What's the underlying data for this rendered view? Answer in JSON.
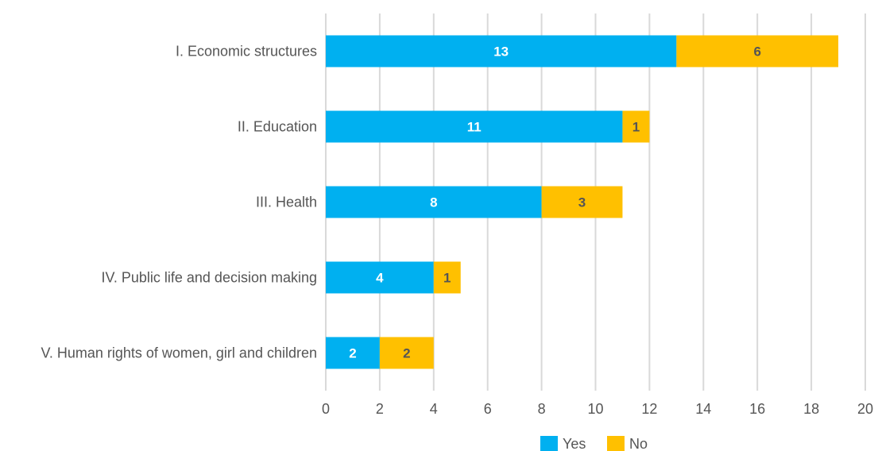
{
  "chart_data": {
    "type": "bar",
    "orientation": "horizontal",
    "stacked": true,
    "title": "",
    "xlabel": "",
    "ylabel": "",
    "categories": [
      "I. Economic structures",
      "II. Education",
      "III. Health",
      "IV. Public life and decision making",
      "V. Human rights of women, girl and children"
    ],
    "series": [
      {
        "name": "Yes",
        "color": "#00B0F0",
        "values": [
          13,
          11,
          8,
          4,
          2
        ]
      },
      {
        "name": "No",
        "color": "#FFC000",
        "values": [
          6,
          1,
          3,
          1,
          2
        ]
      }
    ],
    "xlim": [
      0,
      20
    ],
    "xticks": [
      "0",
      "2",
      "4",
      "6",
      "8",
      "10",
      "12",
      "14",
      "16",
      "18",
      "20"
    ],
    "grid": true,
    "legend": "bottom"
  }
}
